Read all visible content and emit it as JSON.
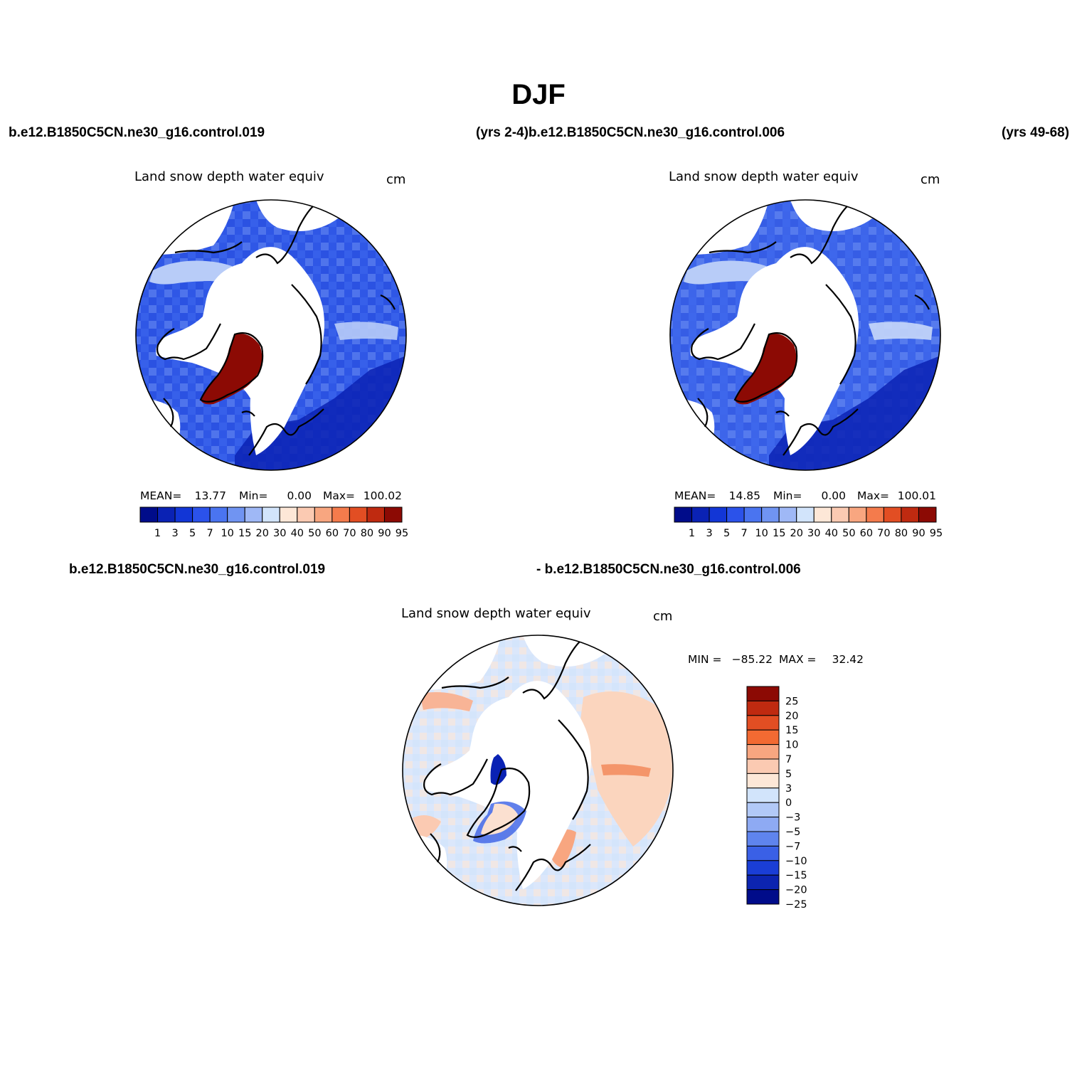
{
  "page": {
    "season_title": "DJF",
    "case_a_label": "b.e12.B1850C5CN.ne30_g16.control.019",
    "case_a_years_label": "(yrs 2-4)",
    "case_b_label": "b.e12.B1850C5CN.ne30_g16.control.006",
    "case_b_years_label": "(yrs 49-68)",
    "diff_label_left": "b.e12.B1850C5CN.ne30_g16.control.019",
    "diff_label_right": "- b.e12.B1850C5CN.ne30_g16.control.006"
  },
  "chart_data": [
    {
      "type": "heatmap",
      "projection": "north polar stereographic",
      "title": "Land snow depth water equiv",
      "units": "cm",
      "stats": {
        "mean_label": "MEAN=",
        "mean": "13.77",
        "min_label": "Min=",
        "min": "0.00",
        "max_label": "Max=",
        "max": "100.02"
      },
      "colorbar": {
        "orientation": "horizontal",
        "levels": [
          "1",
          "3",
          "5",
          "7",
          "10",
          "15",
          "20",
          "30",
          "40",
          "50",
          "60",
          "70",
          "80",
          "90",
          "95"
        ],
        "colors": [
          "#000c8a",
          "#0a22b4",
          "#1236d6",
          "#2b52ea",
          "#4a74f0",
          "#7094f2",
          "#9fb8f6",
          "#d2e4fb",
          "#fde7d7",
          "#fbcab2",
          "#f8a680",
          "#f47b4c",
          "#e24e23",
          "#bf2a10",
          "#8c0a04"
        ]
      }
    },
    {
      "type": "heatmap",
      "projection": "north polar stereographic",
      "title": "Land snow depth water equiv",
      "units": "cm",
      "stats": {
        "mean_label": "MEAN=",
        "mean": "14.85",
        "min_label": "Min=",
        "min": "0.00",
        "max_label": "Max=",
        "max": "100.01"
      },
      "colorbar": {
        "orientation": "horizontal",
        "levels": [
          "1",
          "3",
          "5",
          "7",
          "10",
          "15",
          "20",
          "30",
          "40",
          "50",
          "60",
          "70",
          "80",
          "90",
          "95"
        ],
        "colors": [
          "#000c8a",
          "#0a22b4",
          "#1236d6",
          "#2b52ea",
          "#4a74f0",
          "#7094f2",
          "#9fb8f6",
          "#d2e4fb",
          "#fde7d7",
          "#fbcab2",
          "#f8a680",
          "#f47b4c",
          "#e24e23",
          "#bf2a10",
          "#8c0a04"
        ]
      }
    },
    {
      "type": "heatmap",
      "projection": "north polar stereographic",
      "title": "Land snow depth water equiv",
      "units": "cm",
      "stats": {
        "min_label": "MIN =",
        "min": "−85.22",
        "max_label": "MAX =",
        "max": "32.42"
      },
      "colorbar": {
        "orientation": "vertical",
        "levels": [
          "25",
          "20",
          "15",
          "10",
          "7",
          "5",
          "3",
          "0",
          "−3",
          "−5",
          "−7",
          "−10",
          "−15",
          "−20",
          "−25"
        ],
        "colors": [
          "#8c0a04",
          "#bf2a10",
          "#e24e23",
          "#f26a32",
          "#f8a680",
          "#fbcab2",
          "#fde7d7",
          "#d2e4fb",
          "#b2c9f7",
          "#8eaaf3",
          "#5f84ee",
          "#3a60e6",
          "#1a3ed6",
          "#0c24b0",
          "#000c8a"
        ]
      }
    }
  ]
}
